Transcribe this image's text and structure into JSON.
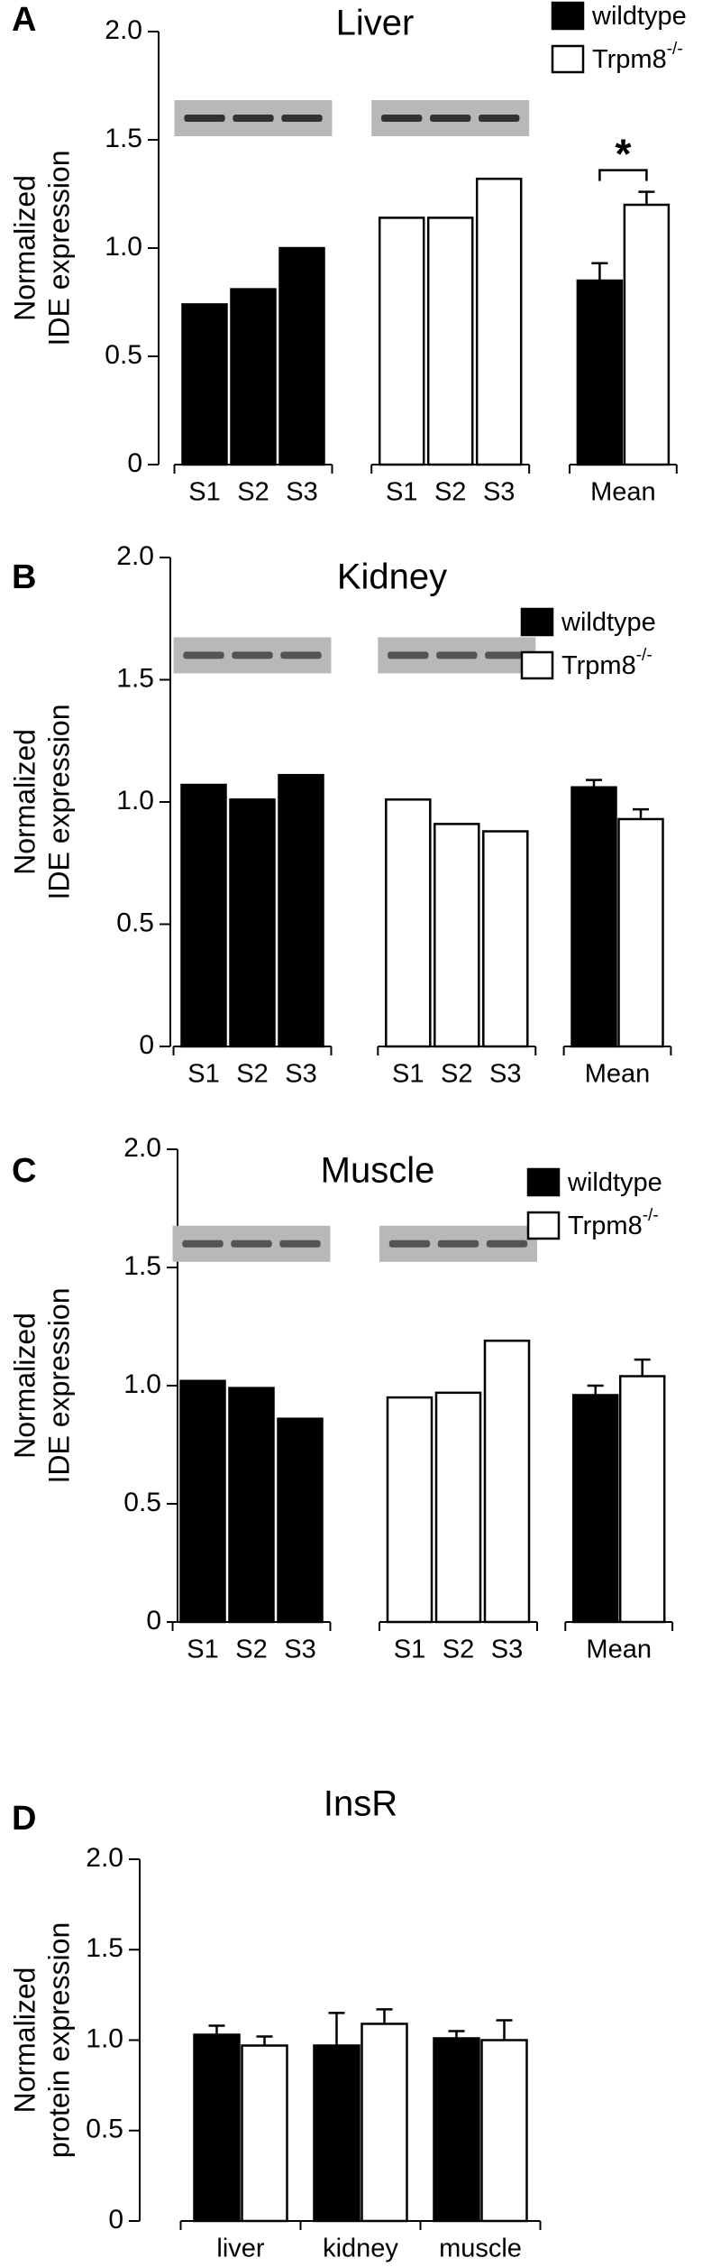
{
  "chart_data": [
    {
      "type": "bar",
      "panel": "A",
      "title": "Liver",
      "y_label": [
        "Normalized",
        "IDE expression"
      ],
      "categories": [
        "S1",
        "S2",
        "S3",
        "S1",
        "S2",
        "S3",
        "Mean"
      ],
      "series": [
        {
          "name": "wildtype",
          "color": "#000000",
          "values": [
            0.74,
            0.81,
            1.0,
            null,
            null,
            null,
            0.85
          ],
          "errors": [
            null,
            null,
            null,
            null,
            null,
            null,
            0.08
          ]
        },
        {
          "name": "Trpm8",
          "name_sup": "-/-",
          "color": "#ffffff",
          "values": [
            null,
            null,
            null,
            1.14,
            1.14,
            1.32,
            1.2
          ],
          "errors": [
            null,
            null,
            null,
            null,
            null,
            null,
            0.06
          ]
        }
      ],
      "annotation": "*",
      "ylim": [
        0,
        2
      ],
      "yticks": [
        0,
        0.5,
        {
          "value": 1,
          "label": "1.0"
        },
        1.5,
        {
          "value": 2,
          "label": "2.0"
        }
      ]
    },
    {
      "type": "bar",
      "panel": "B",
      "title": "Kidney",
      "y_label": [
        "Normalized",
        "IDE expression"
      ],
      "categories": [
        "S1",
        "S2",
        "S3",
        "S1",
        "S2",
        "S3",
        "Mean"
      ],
      "series": [
        {
          "name": "wildtype",
          "color": "#000000",
          "values": [
            1.07,
            1.01,
            1.11,
            null,
            null,
            null,
            1.06
          ],
          "errors": [
            null,
            null,
            null,
            null,
            null,
            null,
            0.03
          ]
        },
        {
          "name": "Trpm8",
          "name_sup": "-/-",
          "color": "#ffffff",
          "values": [
            null,
            null,
            null,
            1.01,
            0.91,
            0.88,
            0.93
          ],
          "errors": [
            null,
            null,
            null,
            null,
            null,
            null,
            0.04
          ]
        }
      ],
      "ylim": [
        0,
        2
      ],
      "yticks": [
        0,
        0.5,
        {
          "value": 1,
          "label": "1.0"
        },
        1.5,
        {
          "value": 2,
          "label": "2.0"
        }
      ]
    },
    {
      "type": "bar",
      "panel": "C",
      "title": "Muscle",
      "y_label": [
        "Normalized",
        "IDE expression"
      ],
      "categories": [
        "S1",
        "S2",
        "S3",
        "S1",
        "S2",
        "S3",
        "Mean"
      ],
      "series": [
        {
          "name": "wildtype",
          "color": "#000000",
          "values": [
            1.02,
            0.99,
            0.86,
            null,
            null,
            null,
            0.96
          ],
          "errors": [
            null,
            null,
            null,
            null,
            null,
            null,
            0.04
          ]
        },
        {
          "name": "Trpm8",
          "name_sup": "-/-",
          "color": "#ffffff",
          "values": [
            null,
            null,
            null,
            0.95,
            0.97,
            1.19,
            1.04
          ],
          "errors": [
            null,
            null,
            null,
            null,
            null,
            null,
            0.07
          ]
        }
      ],
      "ylim": [
        0,
        2
      ],
      "yticks": [
        0,
        0.5,
        {
          "value": 1,
          "label": "1.0"
        },
        1.5,
        {
          "value": 2,
          "label": "2.0"
        }
      ]
    },
    {
      "type": "bar",
      "panel": "D",
      "title": "InsR",
      "y_label": [
        "Normalized",
        "protein expression"
      ],
      "categories": [
        "liver",
        "kidney",
        "muscle"
      ],
      "series": [
        {
          "color": "#000000",
          "values": [
            1.03,
            0.97,
            1.01
          ],
          "errors": [
            0.05,
            0.18,
            0.04
          ]
        },
        {
          "color": "#ffffff",
          "values": [
            0.97,
            1.09,
            1.0
          ],
          "errors": [
            0.05,
            0.08,
            0.11
          ]
        }
      ],
      "ylim": [
        0,
        2
      ],
      "yticks": [
        0,
        0.5,
        {
          "value": 1,
          "label": "1.0"
        },
        1.5,
        {
          "value": 2,
          "label": "2.0"
        }
      ]
    }
  ]
}
